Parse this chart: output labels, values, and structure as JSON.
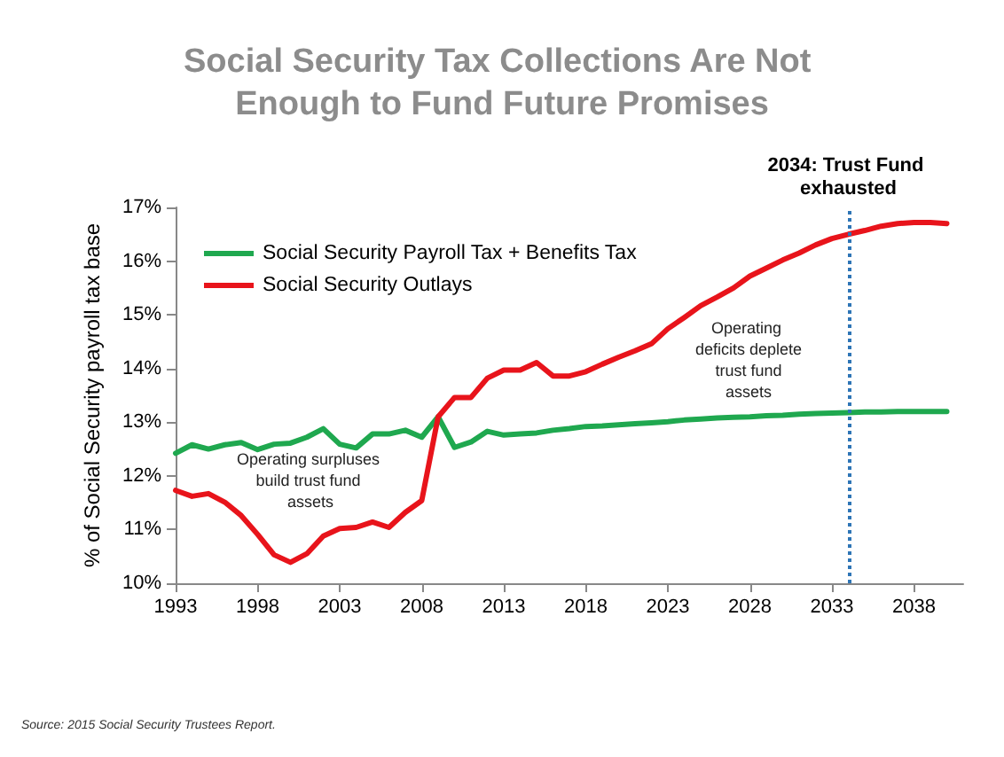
{
  "chart_data": {
    "type": "line",
    "title": "Social Security Tax Collections Are Not Enough to Fund Future Promises",
    "ylabel": "% of Social Security payroll tax base",
    "x": [
      1993,
      1994,
      1995,
      1996,
      1997,
      1998,
      1999,
      2000,
      2001,
      2002,
      2003,
      2004,
      2005,
      2006,
      2007,
      2008,
      2009,
      2010,
      2011,
      2012,
      2013,
      2014,
      2015,
      2016,
      2017,
      2018,
      2019,
      2020,
      2021,
      2022,
      2023,
      2024,
      2025,
      2026,
      2027,
      2028,
      2029,
      2030,
      2031,
      2032,
      2033,
      2034,
      2035,
      2036,
      2037,
      2038,
      2039,
      2040
    ],
    "series": [
      {
        "name": "Social Security Payroll Tax + Benefits Tax",
        "color": "#1fa84f",
        "values": [
          12.42,
          12.58,
          12.5,
          12.58,
          12.62,
          12.49,
          12.59,
          12.61,
          12.72,
          12.88,
          12.59,
          12.52,
          12.78,
          12.78,
          12.85,
          12.72,
          13.1,
          12.53,
          12.63,
          12.83,
          12.76,
          12.78,
          12.8,
          12.85,
          12.88,
          12.92,
          12.93,
          12.95,
          12.97,
          12.99,
          13.01,
          13.04,
          13.06,
          13.08,
          13.09,
          13.1,
          13.12,
          13.13,
          13.15,
          13.16,
          13.17,
          13.18,
          13.19,
          13.19,
          13.2,
          13.2,
          13.2,
          13.2
        ]
      },
      {
        "name": "Social Security Outlays",
        "color": "#e8141b",
        "values": [
          11.73,
          11.62,
          11.67,
          11.51,
          11.26,
          10.91,
          10.53,
          10.39,
          10.55,
          10.88,
          11.02,
          11.04,
          11.14,
          11.04,
          11.32,
          11.54,
          13.1,
          13.46,
          13.46,
          13.82,
          13.97,
          13.97,
          14.11,
          13.86,
          13.86,
          13.94,
          14.08,
          14.21,
          14.33,
          14.46,
          14.74,
          14.95,
          15.17,
          15.33,
          15.5,
          15.72,
          15.87,
          16.02,
          16.15,
          16.3,
          16.42,
          16.5,
          16.57,
          16.65,
          16.7,
          16.72,
          16.72,
          16.7
        ]
      }
    ],
    "xlim": [
      1993,
      2041
    ],
    "xticks": [
      1993,
      1998,
      2003,
      2008,
      2013,
      2018,
      2023,
      2028,
      2033,
      2038
    ],
    "ylim": [
      10,
      17
    ],
    "yticks": [
      {
        "value": 10,
        "label": "10%"
      },
      {
        "value": 11,
        "label": "11%"
      },
      {
        "value": 12,
        "label": "12%"
      },
      {
        "value": 13,
        "label": "13%"
      },
      {
        "value": 14,
        "label": "14%"
      },
      {
        "value": 15,
        "label": "15%"
      },
      {
        "value": 16,
        "label": "16%"
      },
      {
        "value": 17,
        "label": "17%"
      }
    ],
    "ref_lines": [
      {
        "axis": "x",
        "value": 2034,
        "label": "2034: Trust Fund exhausted",
        "color": "#2e75b6",
        "line_style": "dotted"
      }
    ],
    "annotations": [
      "Operating surpluses build trust fund assets",
      "Operating deficits deplete trust fund assets",
      "Source: 2015 Social Security Trustees Report."
    ],
    "grid": false,
    "legend": "top left",
    "marker": "none",
    "line_style": "solid"
  }
}
